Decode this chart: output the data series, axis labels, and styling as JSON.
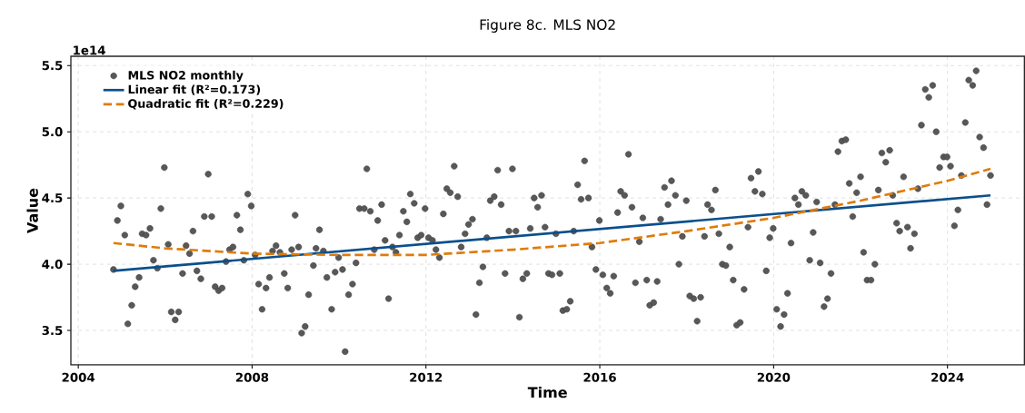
{
  "chart_data": {
    "type": "scatter",
    "title": "Figure 8c. MLS NO2",
    "xlabel": "Time",
    "ylabel": "Value",
    "annotations": [
      "1e14"
    ],
    "xlim": [
      2003.83,
      2025.77
    ],
    "ylim": [
      3.24,
      5.57
    ],
    "xticks": [
      2004,
      2008,
      2012,
      2016,
      2020,
      2024
    ],
    "yticks": [
      {
        "value": 3.5,
        "label": "3.5"
      },
      {
        "value": 4.0,
        "label": "4.0"
      },
      {
        "value": 4.5,
        "label": "4.5"
      },
      {
        "value": 5.0,
        "label": "5.0"
      },
      {
        "value": 5.5,
        "label": "5.5"
      }
    ],
    "grid": true,
    "legend": "top left",
    "series": [
      {
        "name": "MLS NO2 monthly",
        "color": "#3a3a3a",
        "marker": "circle",
        "x": [
          2004.81,
          2004.9,
          2004.98,
          2005.07,
          2005.14,
          2005.23,
          2005.31,
          2005.4,
          2005.47,
          2005.56,
          2005.65,
          2005.73,
          2005.82,
          2005.9,
          2005.98,
          2006.07,
          2006.14,
          2006.23,
          2006.31,
          2006.4,
          2006.48,
          2006.56,
          2006.64,
          2006.73,
          2006.82,
          2006.9,
          2006.99,
          2007.07,
          2007.15,
          2007.23,
          2007.31,
          2007.4,
          2007.48,
          2007.56,
          2007.65,
          2007.73,
          2007.81,
          2007.9,
          2007.98,
          2008.07,
          2008.15,
          2008.23,
          2008.32,
          2008.4,
          2008.47,
          2008.55,
          2008.64,
          2008.74,
          2008.82,
          2008.91,
          2008.99,
          2009.07,
          2009.14,
          2009.22,
          2009.3,
          2009.41,
          2009.47,
          2009.55,
          2009.64,
          2009.72,
          2009.83,
          2009.91,
          2009.99,
          2010.08,
          2010.14,
          2010.22,
          2010.31,
          2010.39,
          2010.47,
          2010.58,
          2010.64,
          2010.72,
          2010.81,
          2010.89,
          2010.98,
          2011.06,
          2011.14,
          2011.23,
          2011.31,
          2011.39,
          2011.48,
          2011.56,
          2011.64,
          2011.73,
          2011.81,
          2011.89,
          2011.98,
          2012.06,
          2012.15,
          2012.23,
          2012.31,
          2012.4,
          2012.48,
          2012.56,
          2012.65,
          2012.73,
          2012.81,
          2012.9,
          2012.98,
          2013.07,
          2013.15,
          2013.23,
          2013.31,
          2013.4,
          2013.48,
          2013.57,
          2013.65,
          2013.73,
          2013.82,
          2013.91,
          2013.99,
          2014.07,
          2014.15,
          2014.23,
          2014.32,
          2014.4,
          2014.49,
          2014.57,
          2014.66,
          2014.74,
          2014.82,
          2014.9,
          2014.99,
          2015.08,
          2015.15,
          2015.24,
          2015.32,
          2015.4,
          2015.49,
          2015.57,
          2015.65,
          2015.74,
          2015.82,
          2015.91,
          2015.99,
          2016.07,
          2016.16,
          2016.24,
          2016.32,
          2016.41,
          2016.48,
          2016.57,
          2016.66,
          2016.74,
          2016.82,
          2016.91,
          2016.99,
          2017.08,
          2017.15,
          2017.24,
          2017.32,
          2017.4,
          2017.49,
          2017.57,
          2017.65,
          2017.74,
          2017.82,
          2017.9,
          2017.99,
          2018.07,
          2018.16,
          2018.24,
          2018.32,
          2018.41,
          2018.48,
          2018.57,
          2018.66,
          2018.74,
          2018.82,
          2018.9,
          2018.99,
          2019.07,
          2019.15,
          2019.23,
          2019.32,
          2019.41,
          2019.48,
          2019.57,
          2019.65,
          2019.74,
          2019.83,
          2019.91,
          2019.99,
          2020.07,
          2020.16,
          2020.24,
          2020.32,
          2020.4,
          2020.49,
          2020.57,
          2020.65,
          2020.74,
          2020.83,
          2020.91,
          2020.99,
          2021.07,
          2021.16,
          2021.24,
          2021.32,
          2021.41,
          2021.48,
          2021.57,
          2021.66,
          2021.74,
          2021.82,
          2021.91,
          2022.0,
          2022.07,
          2022.15,
          2022.24,
          2022.33,
          2022.41,
          2022.49,
          2022.58,
          2022.67,
          2022.74,
          2022.83,
          2022.9,
          2022.99,
          2023.08,
          2023.15,
          2023.24,
          2023.32,
          2023.4,
          2023.49,
          2023.57,
          2023.66,
          2023.74,
          2023.82,
          2023.91,
          2023.99,
          2024.07,
          2024.16,
          2024.24,
          2024.32,
          2024.41,
          2024.49,
          2024.58,
          2024.66,
          2024.74,
          2024.83,
          2024.91,
          2024.99
        ],
        "values": [
          3.96,
          4.33,
          4.44,
          4.22,
          3.55,
          3.69,
          3.83,
          3.9,
          4.23,
          4.22,
          4.27,
          4.03,
          3.97,
          4.42,
          4.73,
          4.15,
          3.64,
          3.58,
          3.64,
          3.93,
          4.14,
          4.08,
          4.25,
          3.95,
          3.89,
          4.36,
          4.68,
          4.36,
          3.83,
          3.8,
          3.82,
          4.02,
          4.11,
          4.13,
          4.37,
          4.26,
          4.03,
          4.53,
          4.44,
          4.07,
          3.85,
          3.66,
          3.82,
          3.9,
          4.1,
          4.14,
          4.09,
          3.93,
          3.82,
          4.11,
          4.37,
          4.13,
          3.48,
          3.53,
          3.77,
          3.99,
          4.12,
          4.26,
          4.1,
          3.9,
          3.66,
          3.94,
          4.05,
          3.96,
          3.34,
          3.77,
          3.85,
          4.01,
          4.42,
          4.42,
          4.72,
          4.4,
          4.11,
          4.33,
          4.45,
          4.18,
          3.74,
          4.13,
          4.09,
          4.22,
          4.4,
          4.32,
          4.53,
          4.46,
          4.2,
          4.22,
          4.42,
          4.2,
          4.18,
          4.11,
          4.05,
          4.38,
          4.57,
          4.54,
          4.74,
          4.51,
          4.13,
          4.23,
          4.3,
          4.34,
          3.62,
          3.86,
          3.98,
          4.2,
          4.48,
          4.51,
          4.71,
          4.45,
          3.93,
          4.25,
          4.72,
          4.25,
          3.6,
          3.89,
          3.93,
          4.27,
          4.5,
          4.43,
          4.52,
          4.28,
          3.93,
          3.92,
          4.23,
          3.93,
          3.65,
          3.66,
          3.72,
          4.25,
          4.6,
          4.49,
          4.78,
          4.5,
          4.13,
          3.96,
          4.33,
          3.92,
          3.82,
          3.78,
          3.91,
          4.39,
          4.55,
          4.52,
          4.83,
          4.43,
          3.86,
          4.17,
          4.35,
          3.88,
          3.69,
          3.71,
          3.87,
          4.34,
          4.58,
          4.45,
          4.63,
          4.52,
          4.0,
          4.21,
          4.48,
          3.76,
          3.74,
          3.57,
          3.75,
          4.21,
          4.45,
          4.41,
          4.56,
          4.23,
          4.0,
          3.99,
          4.13,
          3.88,
          3.54,
          3.56,
          3.81,
          4.28,
          4.65,
          4.55,
          4.7,
          4.53,
          3.95,
          4.2,
          4.27,
          3.66,
          3.53,
          3.62,
          3.78,
          4.16,
          4.5,
          4.45,
          4.55,
          4.52,
          4.03,
          4.24,
          4.47,
          4.01,
          3.68,
          3.74,
          3.93,
          4.45,
          4.85,
          4.93,
          4.94,
          4.61,
          4.36,
          4.54,
          4.66,
          4.09,
          3.88,
          3.88,
          4.0,
          4.56,
          4.84,
          4.77,
          4.86,
          4.52,
          4.31,
          4.25,
          4.66,
          4.28,
          4.12,
          4.23,
          4.57,
          5.05,
          5.32,
          5.26,
          5.35,
          5.0,
          4.73,
          4.81,
          4.81,
          4.74,
          4.29,
          4.41,
          4.67,
          5.07,
          5.39,
          5.35,
          5.46,
          4.96,
          4.88,
          4.45,
          4.67
        ]
      },
      {
        "name": "Linear fit (R²=0.173)",
        "type": "line",
        "color": "#0b4f8c",
        "line_style": "solid",
        "x": [
          2004.81,
          2024.99
        ],
        "values": [
          3.95,
          4.52
        ]
      },
      {
        "name": "Quadratic fit (R²=0.229)",
        "type": "line",
        "color": "#e07b0a",
        "line_style": "dashed",
        "x": [
          2004.81,
          2006,
          2008,
          2010,
          2012,
          2014,
          2016,
          2018,
          2020,
          2022,
          2024,
          2024.99
        ],
        "values": [
          4.16,
          4.12,
          4.08,
          4.07,
          4.07,
          4.11,
          4.16,
          4.25,
          4.35,
          4.48,
          4.63,
          4.72
        ]
      }
    ]
  }
}
